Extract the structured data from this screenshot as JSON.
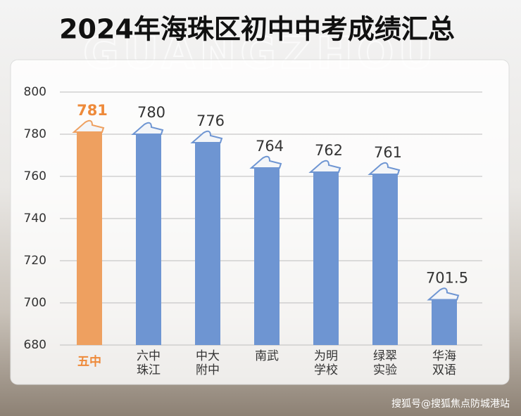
{
  "chart_data": {
    "type": "bar",
    "title": "2024年海珠区初中中考成绩汇总",
    "watermark": "GUANGZHOU",
    "footer": "搜狐号@搜狐焦点防城港站",
    "categories": [
      "五中",
      "六中珠江",
      "中大附中",
      "南武",
      "为明学校",
      "绿翠实验",
      "华海双语"
    ],
    "values": [
      781,
      780,
      776,
      764,
      762,
      761,
      701.5
    ],
    "colors": [
      "#eea060",
      "#6e95d2",
      "#6e95d2",
      "#6e95d2",
      "#6e95d2",
      "#6e95d2",
      "#6e95d2"
    ],
    "label_colors": [
      "#ee8a3a",
      "#333333",
      "#333333",
      "#333333",
      "#333333",
      "#333333",
      "#333333"
    ],
    "ylim": [
      680,
      800
    ],
    "yticks": [
      680,
      700,
      720,
      740,
      760,
      780,
      800
    ],
    "grid": true
  }
}
